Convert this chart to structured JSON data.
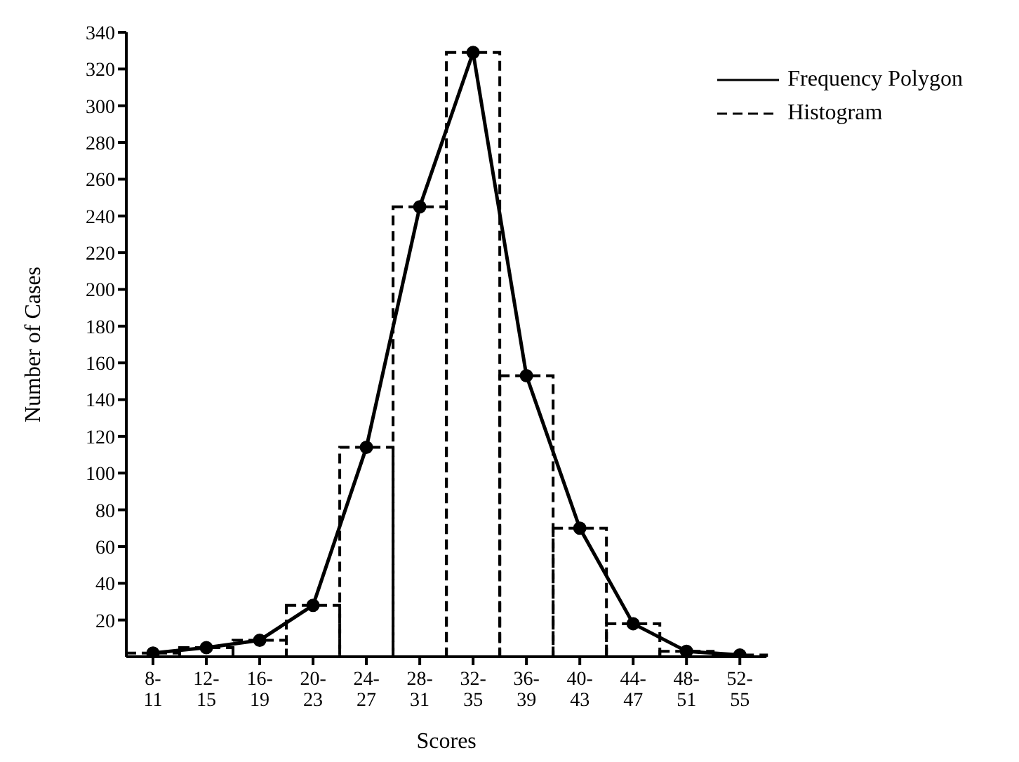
{
  "chart_data": {
    "type": "bar",
    "xlabel": "Scores",
    "ylabel": "Number of Cases",
    "categories": [
      "8-11",
      "12-15",
      "16-19",
      "20-23",
      "24-27",
      "28-31",
      "32-35",
      "36-39",
      "40-43",
      "44-47",
      "48-51",
      "52-55"
    ],
    "series": [
      {
        "name": "Frequency Polygon",
        "type": "line",
        "color": "#000000",
        "line_style": "solid",
        "marker": "circle",
        "values": [
          2,
          5,
          9,
          28,
          114,
          245,
          329,
          153,
          70,
          18,
          3,
          1
        ]
      },
      {
        "name": "Histogram",
        "color": "#000000",
        "line_style": "dashed",
        "values": [
          2,
          5,
          9,
          28,
          114,
          245,
          329,
          153,
          70,
          18,
          3,
          1
        ]
      }
    ],
    "ylim": [
      0,
      340
    ],
    "yticks": [
      20,
      40,
      60,
      80,
      100,
      120,
      140,
      160,
      180,
      200,
      220,
      240,
      260,
      280,
      300,
      320,
      340
    ],
    "grid": false,
    "legend": "top right"
  }
}
